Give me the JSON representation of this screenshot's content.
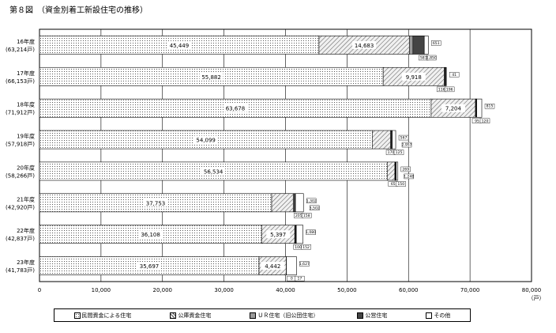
{
  "title": "第８図　（資金別着工新設住宅の推移）",
  "chart_data": {
    "type": "bar",
    "orientation": "horizontal",
    "stacked": true,
    "title": "第８図　（資金別着工新設住宅の推移）",
    "xlim": [
      0,
      80000
    ],
    "x_ticks": [
      "0",
      "10,000",
      "20,000",
      "30,000",
      "40,000",
      "50,000",
      "60,000",
      "70,000",
      "80,000"
    ],
    "x_unit": "（戸）",
    "grid": "vertical",
    "legend_position": "bottom",
    "categories": [
      {
        "year": "16年度",
        "total": "(63,214戸)"
      },
      {
        "year": "17年度",
        "total": "(66,153戸)"
      },
      {
        "year": "18年度",
        "total": "(71,912戸)"
      },
      {
        "year": "19年度",
        "total": "(57,918戸)"
      },
      {
        "year": "20年度",
        "total": "(58,266戸)"
      },
      {
        "year": "21年度",
        "total": "(42,920戸)"
      },
      {
        "year": "22年度",
        "total": "(42,837戸)"
      },
      {
        "year": "23年度",
        "total": "(41,783戸)"
      }
    ],
    "series": [
      {
        "name": "民間資金による住宅",
        "color": "#ffffff",
        "values": [
          45449,
          55882,
          63678,
          54099,
          56534,
          37753,
          36108,
          35697
        ],
        "labels": [
          "45,449",
          "55,882",
          "63,678",
          "54,099",
          "56,534",
          "37,753",
          "36,108",
          "35,697"
        ]
      },
      {
        "name": "公庫資金住宅",
        "color": "#d8d8d8",
        "values": [
          14683,
          9918,
          7204,
          2957,
          1248,
          3502,
          5397,
          4442
        ],
        "labels": [
          "14,683",
          "9,918",
          "7,204",
          "2,957",
          "1,248",
          "3,502",
          "5,397",
          "4,442"
        ]
      },
      {
        "name": "ＵＲ住宅（旧公団住宅）",
        "color": "#b8b8b8",
        "values": [
          581,
          116,
          95,
          170,
          65,
          205,
          100,
          0
        ],
        "labels": [
          "581",
          "116",
          "95",
          "170",
          "65",
          "205",
          "100",
          "0"
        ]
      },
      {
        "name": "公営住宅",
        "color": "#707070",
        "values": [
          1850,
          196,
          120,
          125,
          150,
          158,
          152,
          17
        ],
        "labels": [
          "1,850",
          "196",
          "120",
          "125",
          "150",
          "158",
          "152",
          "17"
        ]
      },
      {
        "name": "その他",
        "color": "#ffffff",
        "values": [
          651,
          41,
          815,
          567,
          269,
          1302,
          1080,
          1627
        ],
        "labels": [
          "651",
          "41",
          "815",
          "567",
          "269",
          "1,302",
          "1,080",
          "1,627"
        ]
      }
    ]
  }
}
